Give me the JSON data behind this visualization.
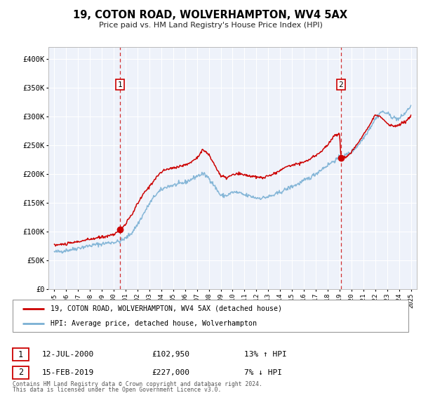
{
  "title": "19, COTON ROAD, WOLVERHAMPTON, WV4 5AX",
  "subtitle": "Price paid vs. HM Land Registry's House Price Index (HPI)",
  "legend_line1": "19, COTON ROAD, WOLVERHAMPTON, WV4 5AX (detached house)",
  "legend_line2": "HPI: Average price, detached house, Wolverhampton",
  "annotation1_date": "12-JUL-2000",
  "annotation1_price": "£102,950",
  "annotation1_hpi": "13% ↑ HPI",
  "annotation2_date": "15-FEB-2019",
  "annotation2_price": "£227,000",
  "annotation2_hpi": "7% ↓ HPI",
  "footer1": "Contains HM Land Registry data © Crown copyright and database right 2024.",
  "footer2": "This data is licensed under the Open Government Licence v3.0.",
  "sale1_year": 2000.54,
  "sale1_price": 102950,
  "sale2_year": 2019.12,
  "sale2_price": 227000,
  "red_line_color": "#cc0000",
  "blue_line_color": "#7ab0d4",
  "background_color": "#eef2fa",
  "grid_color": "#ffffff",
  "ylim_min": 0,
  "ylim_max": 420000,
  "xlim_min": 1994.5,
  "xlim_max": 2025.5,
  "yticks": [
    0,
    50000,
    100000,
    150000,
    200000,
    250000,
    300000,
    350000,
    400000
  ],
  "ytick_labels": [
    "£0",
    "£50K",
    "£100K",
    "£150K",
    "£200K",
    "£250K",
    "£300K",
    "£350K",
    "£400K"
  ]
}
